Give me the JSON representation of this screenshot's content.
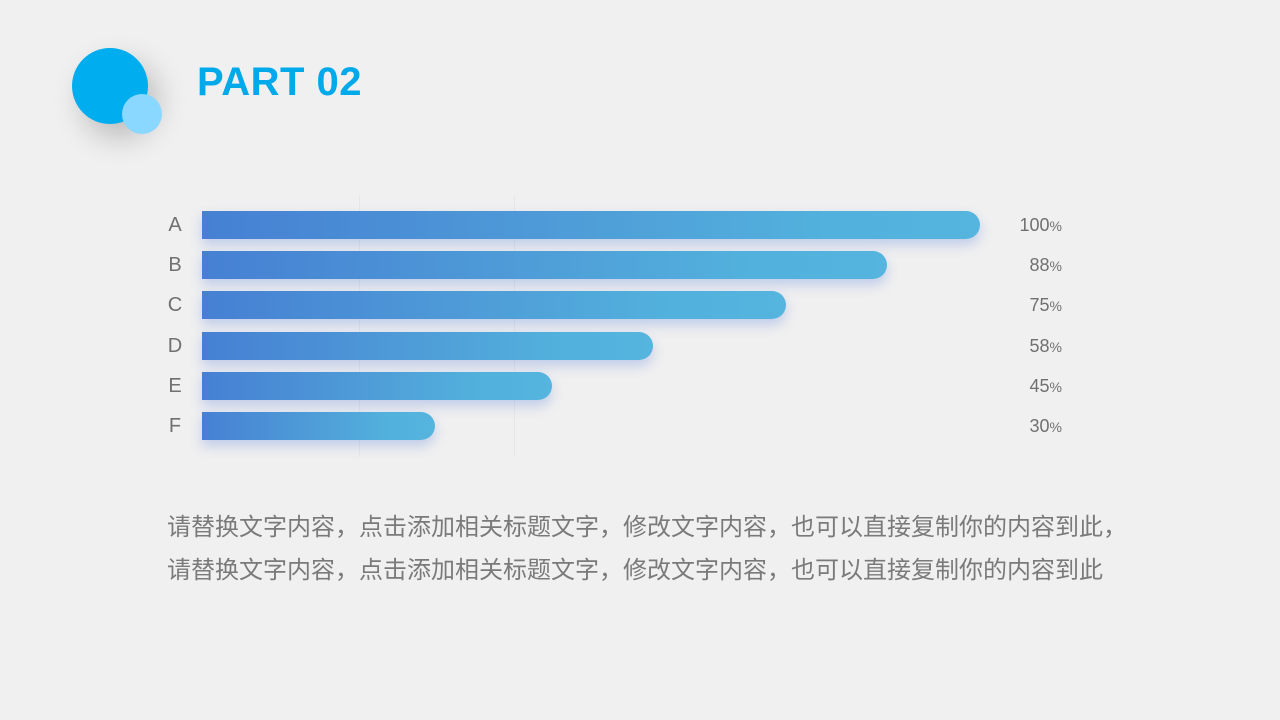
{
  "header": {
    "title": "PART 02"
  },
  "chart_data": {
    "type": "bar",
    "orientation": "horizontal",
    "categories": [
      "A",
      "B",
      "C",
      "D",
      "E",
      "F"
    ],
    "values": [
      100,
      88,
      75,
      58,
      45,
      30
    ],
    "value_suffix": "%",
    "xlim": [
      0,
      100
    ],
    "grid": true,
    "colors": {
      "bar_start": "#4680d3",
      "bar_end": "#55b5de"
    }
  },
  "body": {
    "text": "请替换文字内容，点击添加相关标题文字，修改文字内容，也可以直接复制你的内容到此，请替换文字内容，点击添加相关标题文字，修改文字内容，也可以直接复制你的内容到此"
  },
  "colors": {
    "accent": "#00a9ea",
    "accent_light": "#8ad8ff",
    "background": "#f0f0f0"
  }
}
